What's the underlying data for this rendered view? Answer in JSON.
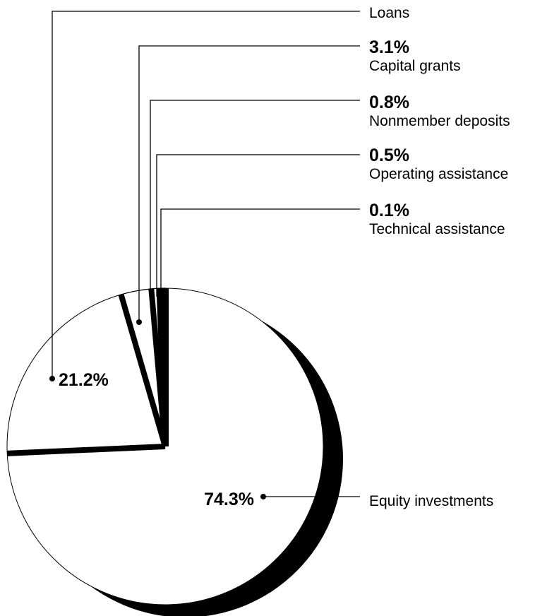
{
  "chart_data": {
    "type": "pie",
    "title": "",
    "slices": [
      {
        "label": "Equity investments",
        "value": 74.3,
        "value_label": "74.3%"
      },
      {
        "label": "Loans",
        "value": 21.2,
        "value_label": "21.2%"
      },
      {
        "label": "Capital grants",
        "value": 3.1,
        "value_label": "3.1%"
      },
      {
        "label": "Nonmember deposits",
        "value": 0.8,
        "value_label": "0.8%"
      },
      {
        "label": "Operating assistance",
        "value": 0.5,
        "value_label": "0.5%"
      },
      {
        "label": "Technical assistance",
        "value": 0.1,
        "value_label": "0.1%"
      }
    ],
    "colors": {
      "fill": "#ffffff",
      "edge": "#000000",
      "shadow": "#000000"
    }
  }
}
